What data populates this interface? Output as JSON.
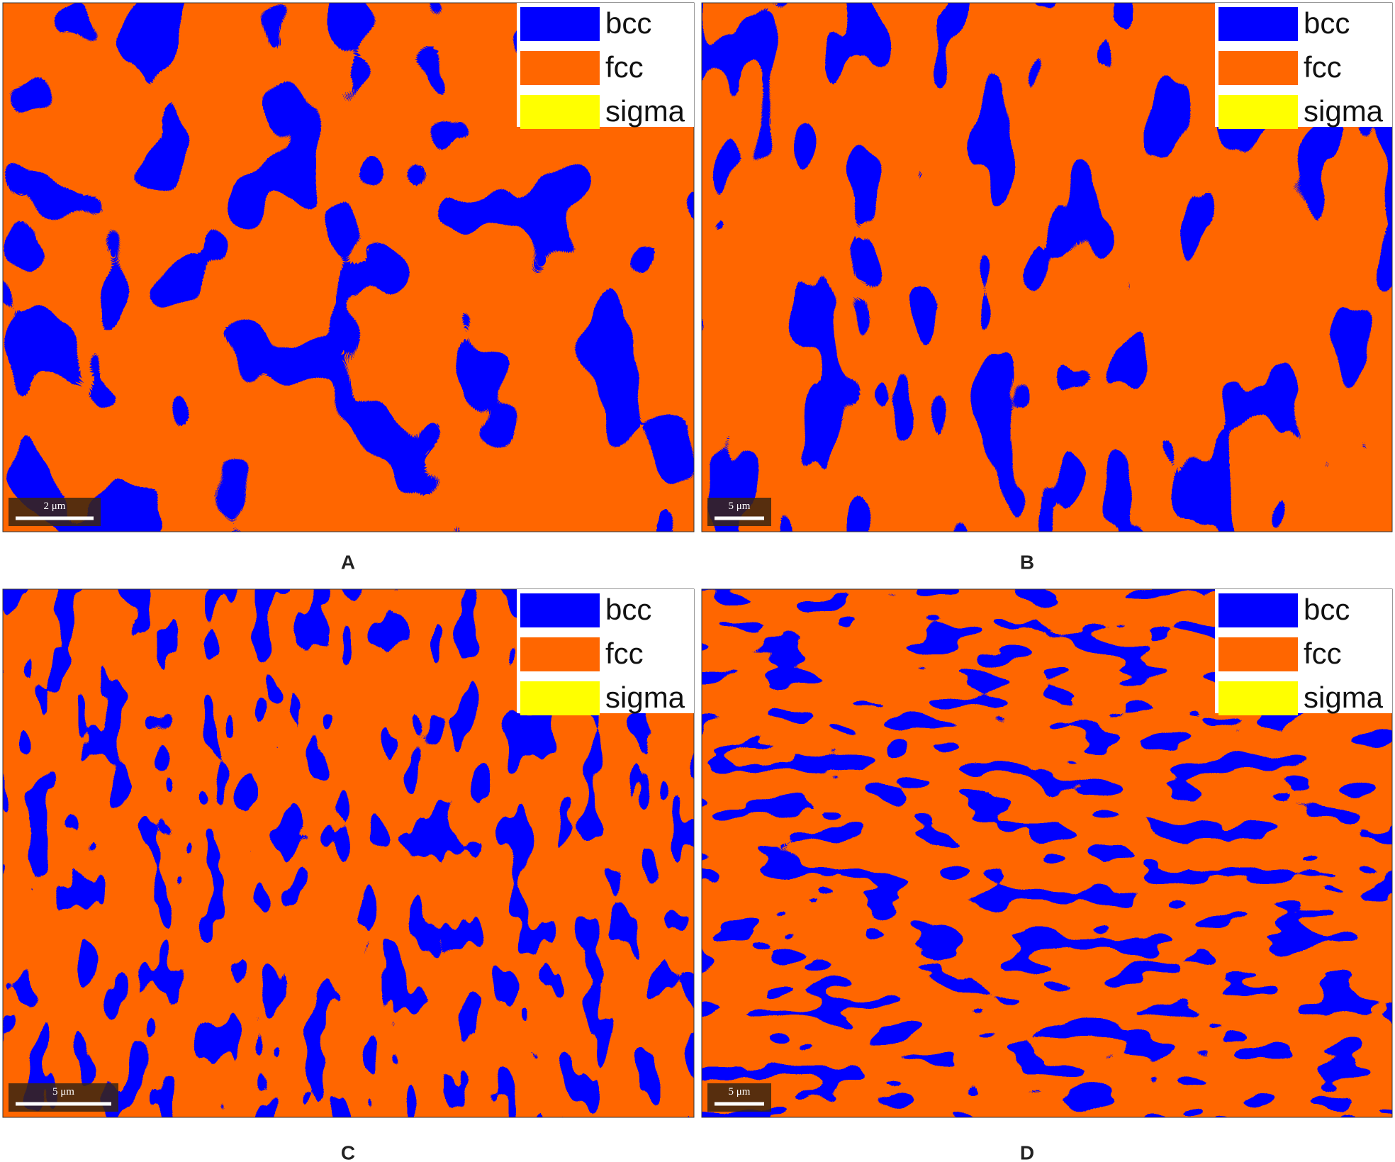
{
  "panels": [
    {
      "label": "A",
      "scale_bar": "2 μm"
    },
    {
      "label": "B",
      "scale_bar": "5 μm"
    },
    {
      "label": "C",
      "scale_bar": "5 μm"
    },
    {
      "label": "D",
      "scale_bar": "5 μm"
    }
  ],
  "legend": [
    {
      "name": "bcc",
      "color": "#0000ff"
    },
    {
      "name": "fcc",
      "color": "#ff6600"
    },
    {
      "name": "sigma",
      "color": "#ffff00"
    }
  ]
}
